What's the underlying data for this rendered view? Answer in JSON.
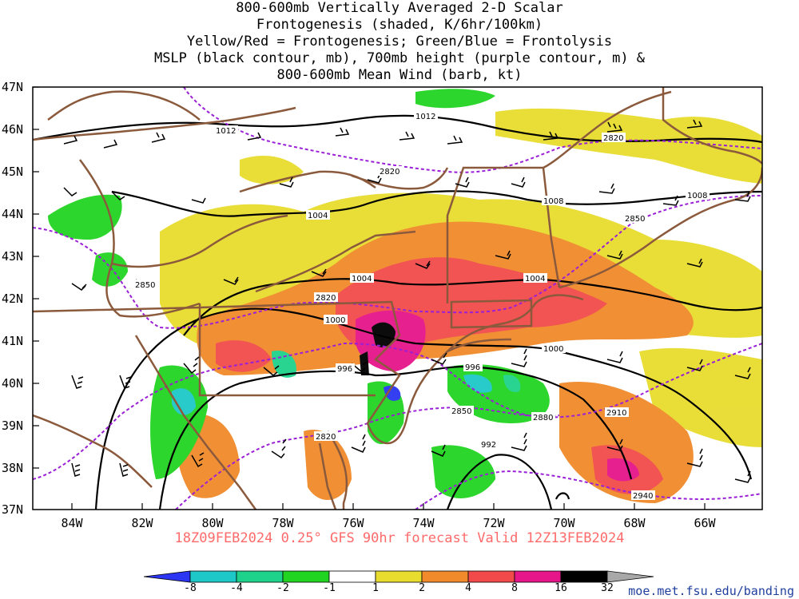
{
  "title": {
    "line1": "800-600mb Vertically Averaged 2-D Scalar",
    "line2": "Frontogenesis (shaded, K/6hr/100km)",
    "line3": "Yellow/Red = Frontogenesis;  Green/Blue = Frontolysis",
    "line4": "MSLP (black contour, mb), 700mb height (purple contour, m) &",
    "line5": "800-600mb Mean Wind (barb, kt)"
  },
  "axes": {
    "lat_labels": [
      "47N",
      "46N",
      "45N",
      "44N",
      "43N",
      "42N",
      "41N",
      "40N",
      "39N",
      "38N",
      "37N"
    ],
    "lon_labels": [
      "84W",
      "82W",
      "80W",
      "78W",
      "76W",
      "74W",
      "72W",
      "70W",
      "68W",
      "66W"
    ]
  },
  "footer": "18Z09FEB2024 0.25° GFS 90hr forecast Valid 12Z13FEB2024",
  "colorbar": {
    "labels": [
      "-8",
      "-4",
      "-2",
      "-1",
      "1",
      "2",
      "4",
      "8",
      "16",
      "32"
    ],
    "colors": [
      "#2b35f2",
      "#1ec8c8",
      "#1ed28c",
      "#22d422",
      "#ffffff",
      "#e8dc2e",
      "#f08a2a",
      "#f24a4a",
      "#e6158a",
      "#000000",
      "#a8a8a8"
    ]
  },
  "mslp_labels": [
    "1012",
    "1012",
    "1008",
    "1008",
    "1004",
    "1004",
    "1004",
    "1000",
    "1000",
    "996",
    "996",
    "992"
  ],
  "height_labels": [
    "2820",
    "2820",
    "2820",
    "2850",
    "2850",
    "2850",
    "2880",
    "2910",
    "2820",
    "2940"
  ],
  "credit": "moe.met.fsu.edu/banding"
}
